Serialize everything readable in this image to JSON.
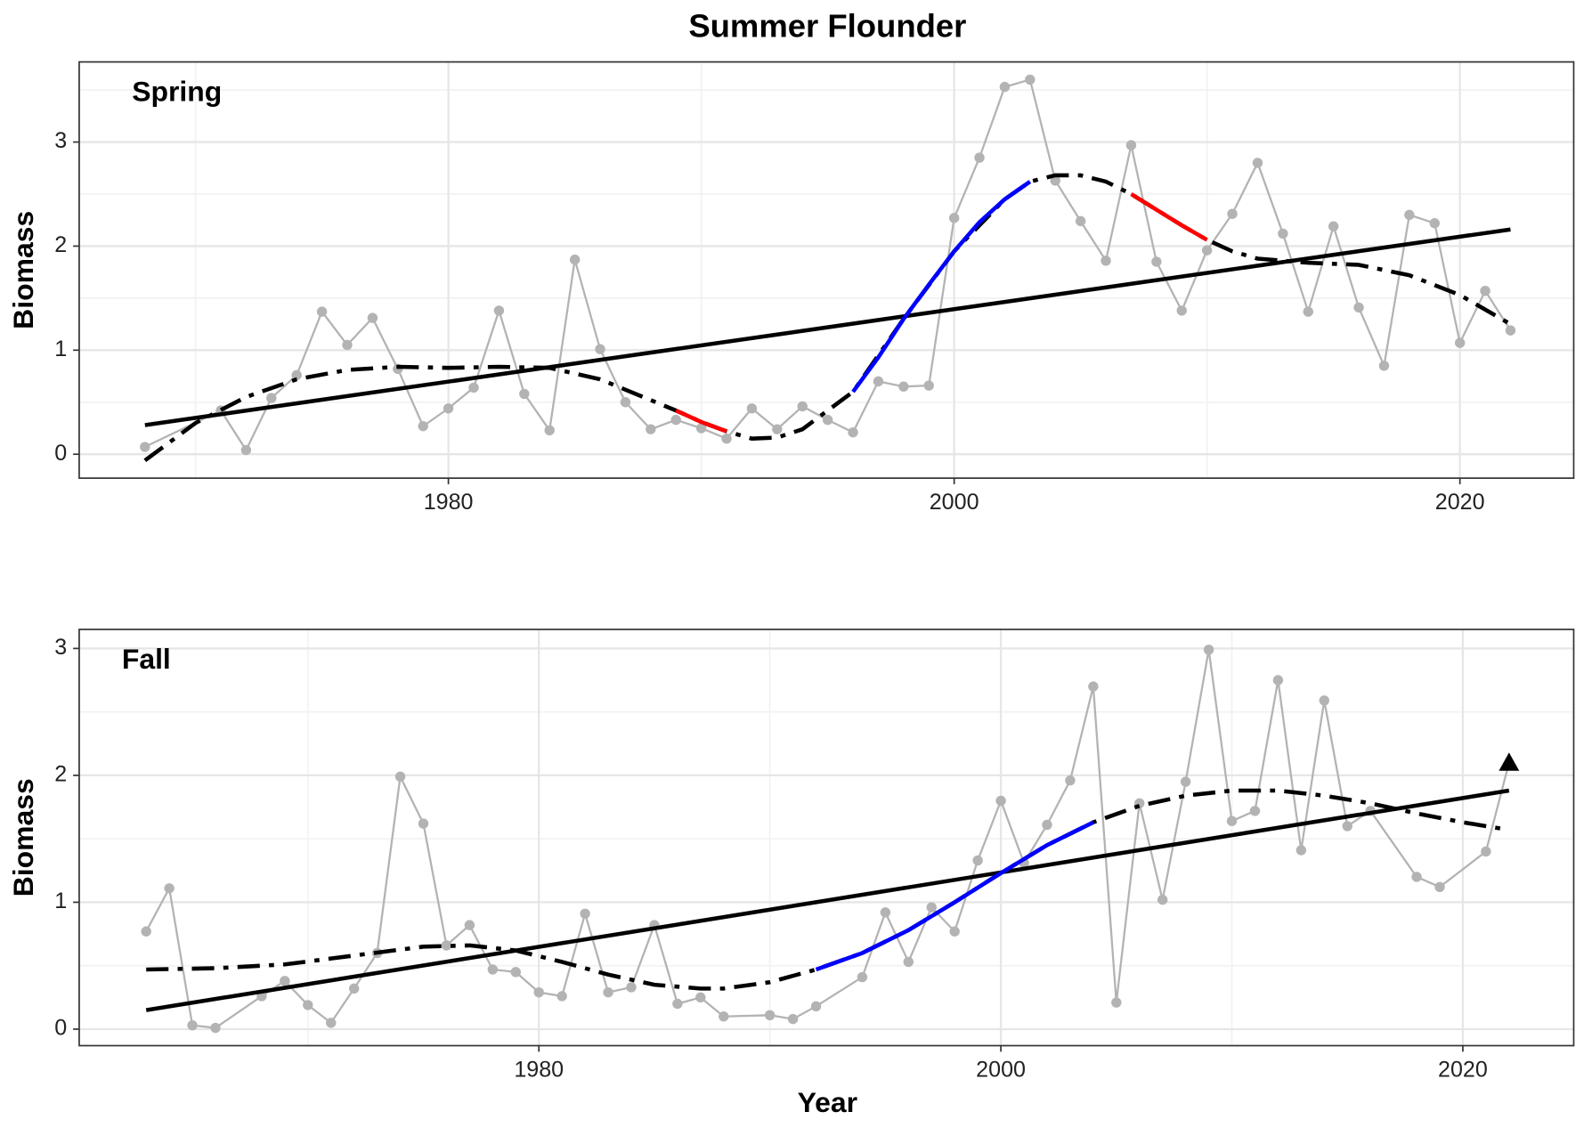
{
  "title": "Summer Flounder",
  "xlabel": "Year",
  "chart_data": [
    {
      "type": "line",
      "label": "Spring",
      "ylabel": "Biomass",
      "xlim": [
        1965.4,
        2024.5
      ],
      "ylim": [
        -0.23,
        3.77
      ],
      "xticks": [
        1980,
        2000,
        2020
      ],
      "yticks": [
        0,
        1,
        2,
        3
      ],
      "grid": true,
      "minor_grid": true,
      "series": [
        {
          "color": "#b3b3b3",
          "style": "solid",
          "markers": true,
          "x": [
            1968,
            1971,
            1972,
            1973,
            1974,
            1975,
            1976,
            1977,
            1978,
            1979,
            1980,
            1981,
            1982,
            1983,
            1984,
            1985,
            1986,
            1987,
            1988,
            1989,
            1990,
            1991,
            1992,
            1993,
            1994,
            1995,
            1996,
            1997,
            1998,
            1999,
            2000,
            2001,
            2002,
            2003,
            2004,
            2005,
            2006,
            2007,
            2008,
            2009,
            2010,
            2011,
            2012,
            2013,
            2014,
            2015,
            2016,
            2017,
            2018,
            2019,
            2020,
            2021,
            2022
          ],
          "values": [
            0.07,
            0.42,
            0.04,
            0.54,
            0.76,
            1.37,
            1.05,
            1.31,
            0.82,
            0.27,
            0.44,
            0.64,
            1.38,
            0.58,
            0.23,
            1.87,
            1.01,
            0.5,
            0.24,
            0.33,
            0.25,
            0.15,
            0.44,
            0.24,
            0.46,
            0.33,
            0.21,
            0.7,
            0.65,
            0.66,
            2.27,
            2.85,
            3.53,
            3.6,
            2.63,
            2.24,
            1.86,
            2.97,
            1.85,
            1.38,
            1.96,
            2.31,
            2.8,
            2.12,
            1.37,
            2.19,
            1.41,
            0.85,
            2.3,
            2.22,
            1.07,
            1.57,
            1.19
          ]
        },
        {
          "color": "#000000",
          "style": "solid",
          "x": [
            1968,
            2022
          ],
          "values": [
            0.28,
            2.16
          ]
        },
        {
          "color": "#000000",
          "style": "dashdot",
          "x": [
            1968,
            1970,
            1972,
            1974,
            1976,
            1978,
            1980,
            1982,
            1984,
            1986,
            1988,
            1989,
            1990,
            1991,
            1992,
            1993,
            1994,
            1996,
            1998,
            2000,
            2002,
            2003,
            2004,
            2005,
            2006,
            2007,
            2008,
            2009,
            2010,
            2011,
            2012,
            2014,
            2016,
            2018,
            2020,
            2022
          ],
          "values": [
            -0.06,
            0.3,
            0.55,
            0.72,
            0.81,
            0.84,
            0.83,
            0.84,
            0.83,
            0.72,
            0.52,
            0.42,
            0.31,
            0.22,
            0.15,
            0.16,
            0.24,
            0.6,
            1.3,
            1.95,
            2.45,
            2.62,
            2.68,
            2.68,
            2.62,
            2.5,
            2.35,
            2.2,
            2.06,
            1.95,
            1.88,
            1.84,
            1.82,
            1.72,
            1.53,
            1.25
          ]
        },
        {
          "color": "#ff0000",
          "style": "solid",
          "x": [
            1989,
            1990,
            1991,
            1999,
            2007,
            2008,
            2009,
            2010
          ],
          "values": [
            0.42,
            0.31,
            0.22,
            null,
            2.5,
            2.35,
            2.2,
            2.06
          ]
        },
        {
          "color": "#0000ff",
          "style": "solid",
          "x": [
            1996,
            1997,
            1998,
            1999,
            2000,
            2001,
            2002,
            2003
          ],
          "values": [
            0.6,
            0.93,
            1.3,
            1.63,
            1.95,
            2.23,
            2.45,
            2.62
          ]
        }
      ]
    },
    {
      "type": "line",
      "label": "Fall",
      "ylabel": "Biomass",
      "xlim": [
        1960.1,
        2024.8
      ],
      "ylim": [
        -0.13,
        3.15
      ],
      "xticks": [
        1980,
        2000,
        2020
      ],
      "yticks": [
        0,
        1,
        2,
        3
      ],
      "grid": true,
      "minor_grid": true,
      "series": [
        {
          "color": "#b3b3b3",
          "style": "solid",
          "markers": true,
          "last_marker": "triangle",
          "x": [
            1963,
            1964,
            1965,
            1966,
            1968,
            1969,
            1970,
            1971,
            1972,
            1973,
            1974,
            1975,
            1976,
            1977,
            1978,
            1979,
            1980,
            1981,
            1982,
            1983,
            1984,
            1985,
            1986,
            1987,
            1988,
            1990,
            1991,
            1992,
            1994,
            1995,
            1996,
            1997,
            1998,
            1999,
            2000,
            2001,
            2002,
            2003,
            2004,
            2005,
            2006,
            2007,
            2008,
            2009,
            2010,
            2011,
            2012,
            2013,
            2014,
            2015,
            2016,
            2018,
            2019,
            2021,
            2022
          ],
          "values": [
            0.77,
            1.11,
            0.03,
            0.01,
            0.26,
            0.38,
            0.19,
            0.05,
            0.32,
            0.6,
            1.99,
            1.62,
            0.66,
            0.82,
            0.47,
            0.45,
            0.29,
            0.26,
            0.91,
            0.29,
            0.33,
            0.82,
            0.2,
            0.25,
            0.1,
            0.11,
            0.08,
            0.18,
            0.41,
            0.92,
            0.53,
            0.96,
            0.77,
            1.33,
            1.8,
            1.31,
            1.61,
            1.96,
            2.7,
            0.21,
            1.78,
            1.02,
            1.95,
            2.99,
            1.64,
            1.72,
            2.75,
            1.41,
            2.59,
            1.6,
            1.72,
            1.2,
            1.12,
            1.4,
            2.1
          ]
        },
        {
          "color": "#000000",
          "style": "solid",
          "x": [
            1963,
            2022
          ],
          "values": [
            0.15,
            1.88
          ]
        },
        {
          "color": "#000000",
          "style": "dashdot",
          "x": [
            1963,
            1966,
            1969,
            1972,
            1975,
            1977,
            1979,
            1981,
            1983,
            1985,
            1987,
            1988,
            1990,
            1992,
            1994,
            1996,
            1998,
            2000,
            2002,
            2004,
            2006,
            2008,
            2010,
            2012,
            2014,
            2016,
            2018,
            2020,
            2022
          ],
          "values": [
            0.47,
            0.48,
            0.51,
            0.58,
            0.65,
            0.66,
            0.62,
            0.53,
            0.43,
            0.35,
            0.32,
            0.32,
            0.37,
            0.47,
            0.6,
            0.78,
            1.0,
            1.23,
            1.45,
            1.63,
            1.76,
            1.84,
            1.88,
            1.88,
            1.84,
            1.78,
            1.7,
            1.63,
            1.57
          ]
        },
        {
          "color": "#0000ff",
          "style": "solid",
          "x": [
            1992,
            1994,
            1996,
            1998,
            2000,
            2002,
            2004
          ],
          "values": [
            0.47,
            0.6,
            0.78,
            1.0,
            1.23,
            1.45,
            1.63
          ]
        }
      ]
    }
  ]
}
